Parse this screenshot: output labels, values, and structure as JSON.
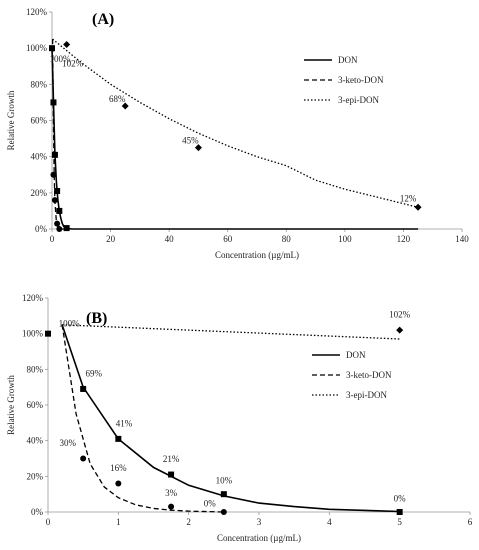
{
  "chart_data": [
    {
      "panel": "(A)",
      "type": "line",
      "xlabel": "Concentration (µg/mL)",
      "ylabel": "Relative Growth",
      "xlim": [
        0,
        140
      ],
      "ylim": [
        0,
        120
      ],
      "x_ticks": [
        "0",
        "20",
        "40",
        "60",
        "80",
        "100",
        "120",
        "140"
      ],
      "y_ticks": [
        "0%",
        "20%",
        "40%",
        "60%",
        "80%",
        "100%",
        "120%"
      ],
      "legend_position": "right",
      "grid": false,
      "series": [
        {
          "name": "DON",
          "style": "solid",
          "marker": "square",
          "points": [
            [
              0,
              100
            ],
            [
              0.5,
              70
            ],
            [
              1,
              41
            ],
            [
              1.75,
              21
            ],
            [
              2.5,
              10
            ],
            [
              5,
              0.5
            ]
          ],
          "curve": [
            [
              0,
              100
            ],
            [
              0.5,
              70
            ],
            [
              1,
              42
            ],
            [
              1.5,
              26
            ],
            [
              2,
              16
            ],
            [
              2.5,
              10
            ],
            [
              3,
              6
            ],
            [
              3.5,
              3
            ],
            [
              4,
              1.5
            ],
            [
              5,
              0.3
            ],
            [
              7,
              0
            ],
            [
              125,
              0
            ]
          ]
        },
        {
          "name": "3-keto-DON",
          "style": "dashed",
          "marker": "circle",
          "points": [
            [
              0.5,
              30
            ],
            [
              1,
              16
            ],
            [
              1.75,
              3
            ],
            [
              2.5,
              0
            ]
          ],
          "curve": [
            [
              0.2,
              105
            ],
            [
              0.5,
              55
            ],
            [
              0.75,
              30
            ],
            [
              1,
              15
            ],
            [
              1.5,
              4
            ],
            [
              2,
              1
            ],
            [
              2.5,
              0.2
            ],
            [
              3,
              0
            ],
            [
              6,
              0
            ]
          ]
        },
        {
          "name": "3-epi-DON",
          "style": "dotted",
          "marker": "diamond",
          "points": [
            [
              5,
              102
            ],
            [
              25,
              68
            ],
            [
              50,
              45
            ],
            [
              125,
              12
            ]
          ],
          "curve": [
            [
              0.2,
              105
            ],
            [
              10,
              92
            ],
            [
              20,
              80
            ],
            [
              30,
              70
            ],
            [
              40,
              61
            ],
            [
              50,
              53
            ],
            [
              60,
              46
            ],
            [
              70,
              40
            ],
            [
              80,
              35
            ],
            [
              90,
              27
            ],
            [
              100,
              22
            ],
            [
              110,
              18
            ],
            [
              125,
              12
            ]
          ]
        }
      ],
      "data_labels": [
        {
          "text": "100%",
          "x": 0,
          "y": 100
        },
        {
          "text": "102%",
          "x": 5,
          "y": 102
        },
        {
          "text": "68%",
          "x": 25,
          "y": 68
        },
        {
          "text": "45%",
          "x": 50,
          "y": 45
        },
        {
          "text": "12%",
          "x": 125,
          "y": 12
        }
      ]
    },
    {
      "panel": "(B)",
      "type": "line",
      "xlabel": "Concentration (µg/mL)",
      "ylabel": "Relative Growth",
      "xlim": [
        0,
        6
      ],
      "ylim": [
        0,
        120
      ],
      "x_ticks": [
        "0",
        "1",
        "2",
        "3",
        "4",
        "5",
        "6"
      ],
      "y_ticks": [
        "0%",
        "20%",
        "40%",
        "60%",
        "80%",
        "100%",
        "120%"
      ],
      "legend_position": "right",
      "grid": false,
      "series": [
        {
          "name": "DON",
          "style": "solid",
          "marker": "square",
          "points": [
            [
              0,
              100
            ],
            [
              0.5,
              69
            ],
            [
              1,
              41
            ],
            [
              1.75,
              21
            ],
            [
              2.5,
              10
            ],
            [
              5,
              0
            ]
          ],
          "curve": [
            [
              0.2,
              105
            ],
            [
              0.5,
              70
            ],
            [
              1,
              41
            ],
            [
              1.5,
              25
            ],
            [
              2,
              15
            ],
            [
              2.5,
              9
            ],
            [
              3,
              5
            ],
            [
              3.5,
              3
            ],
            [
              4,
              1.5
            ],
            [
              5,
              0.3
            ]
          ]
        },
        {
          "name": "3-keto-DON",
          "style": "dashed",
          "marker": "circle",
          "points": [
            [
              0.5,
              30
            ],
            [
              1,
              16
            ],
            [
              1.75,
              3
            ],
            [
              2.5,
              0
            ]
          ],
          "curve": [
            [
              0.2,
              105
            ],
            [
              0.4,
              55
            ],
            [
              0.6,
              27
            ],
            [
              0.8,
              14
            ],
            [
              1,
              8
            ],
            [
              1.25,
              4
            ],
            [
              1.5,
              2
            ],
            [
              1.75,
              1
            ],
            [
              2,
              0.5
            ],
            [
              2.5,
              0
            ]
          ]
        },
        {
          "name": "3-epi-DON",
          "style": "dotted",
          "marker": "diamond",
          "points": [
            [
              5,
              102
            ]
          ],
          "curve": [
            [
              0.2,
              105
            ],
            [
              5,
              97
            ]
          ]
        }
      ],
      "data_labels": [
        {
          "text": "100%",
          "x": 0.3,
          "y": 104
        },
        {
          "text": "69%",
          "x": 0.65,
          "y": 76
        },
        {
          "text": "41%",
          "x": 1.08,
          "y": 48
        },
        {
          "text": "21%",
          "x": 1.75,
          "y": 28
        },
        {
          "text": "10%",
          "x": 2.5,
          "y": 16
        },
        {
          "text": "30%",
          "x": 0.28,
          "y": 37
        },
        {
          "text": "16%",
          "x": 1,
          "y": 23
        },
        {
          "text": "3%",
          "x": 1.75,
          "y": 9
        },
        {
          "text": "0%",
          "x": 2.3,
          "y": 3
        },
        {
          "text": "0%",
          "x": 5,
          "y": 6
        },
        {
          "text": "102%",
          "x": 5,
          "y": 109
        }
      ]
    }
  ]
}
